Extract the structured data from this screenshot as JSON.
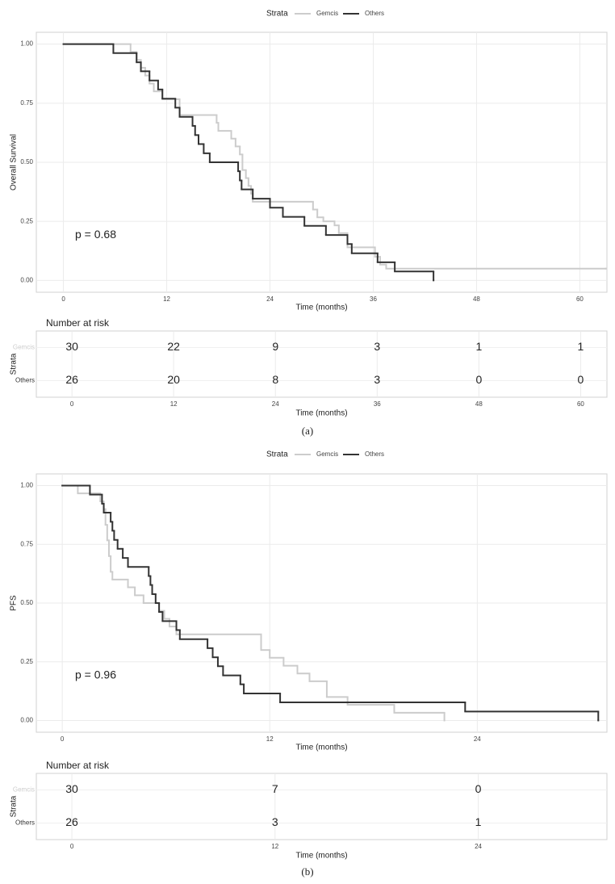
{
  "chart_data": [
    {
      "type": "step",
      "ylabel": "Overall Survival",
      "xlabel": "Time (months)",
      "legend_title": "Strata",
      "annotation": "p = 0.68",
      "xlim": [
        -3.15,
        63.15
      ],
      "xticks": [
        0,
        12,
        24,
        36,
        48,
        60
      ],
      "ylim": [
        -0.05,
        1.05
      ],
      "yticks": [
        {
          "value": 0,
          "label": "0.00"
        },
        0.25,
        {
          "value": 0.5,
          "label": "0.50"
        },
        0.75,
        {
          "value": 1,
          "label": "1.00"
        }
      ],
      "grid": true,
      "series": [
        {
          "name": "Gemcis",
          "color": "#cccccc",
          "x": [
            0,
            7.8,
            8.5,
            9,
            9.5,
            10,
            10.5,
            11.5,
            13.5,
            17.8,
            18,
            19.5,
            20,
            20.5,
            20.8,
            21.2,
            21.5,
            21.8,
            22,
            29,
            29.5,
            30.2,
            31.5,
            32,
            33,
            36.2,
            36.8,
            37.5,
            63
          ],
          "values": [
            1,
            0.967,
            0.933,
            0.9,
            0.867,
            0.833,
            0.8,
            0.767,
            0.7,
            0.667,
            0.633,
            0.6,
            0.567,
            0.533,
            0.467,
            0.433,
            0.4,
            0.367,
            0.333,
            0.3,
            0.267,
            0.25,
            0.233,
            0.2,
            0.14,
            0.1,
            0.067,
            0.05,
            0.05
          ]
        },
        {
          "name": "Others",
          "color": "#333333",
          "x": [
            0,
            5.8,
            8.5,
            9,
            10,
            11,
            11.5,
            13,
            13.5,
            15,
            15.3,
            15.7,
            16.3,
            17,
            20.3,
            20.5,
            20.7,
            22,
            24,
            25.5,
            28,
            30.5,
            33,
            33.5,
            36.5,
            38.5,
            43
          ],
          "values": [
            1,
            0.962,
            0.923,
            0.885,
            0.846,
            0.808,
            0.769,
            0.731,
            0.692,
            0.654,
            0.615,
            0.577,
            0.538,
            0.5,
            0.462,
            0.423,
            0.385,
            0.346,
            0.308,
            0.269,
            0.231,
            0.192,
            0.154,
            0.115,
            0.077,
            0.038,
            0
          ]
        }
      ]
    },
    {
      "type": "risk_table",
      "title": "Number at risk",
      "ylabel": "Strata",
      "xlabel": "Time (months)",
      "caption": "(a)",
      "xlim": [
        -4.2,
        63.1
      ],
      "xticks": [
        0,
        12,
        24,
        36,
        48,
        60
      ],
      "x": [
        0,
        12,
        24,
        36,
        48,
        60
      ],
      "series": [
        {
          "name": "Gemcis",
          "color": "#cccccc",
          "values": [
            30,
            22,
            9,
            3,
            1,
            1
          ]
        },
        {
          "name": "Others",
          "color": "#333333",
          "values": [
            26,
            20,
            8,
            3,
            0,
            0
          ]
        }
      ]
    },
    {
      "type": "step",
      "ylabel": "PFS",
      "xlabel": "Time (months)",
      "legend_title": "Strata",
      "annotation": "p = 0.96",
      "xlim": [
        -1.5,
        31.5
      ],
      "xticks": [
        0,
        12,
        24
      ],
      "ylim": [
        -0.05,
        1.05
      ],
      "yticks": [
        {
          "value": 0,
          "label": "0.00"
        },
        0.25,
        {
          "value": 0.5,
          "label": "0.50"
        },
        0.75,
        {
          "value": 1,
          "label": "1.00"
        }
      ],
      "grid": true,
      "series": [
        {
          "name": "Gemcis",
          "color": "#cccccc",
          "x": [
            0,
            0.9,
            2.2,
            2.4,
            2.5,
            2.6,
            2.7,
            2.8,
            2.9,
            3.8,
            4.2,
            4.7,
            5.6,
            5.9,
            6.2,
            6.6,
            11.5,
            12,
            12.8,
            13.6,
            14.3,
            15.3,
            16.5,
            19.2,
            22.1
          ],
          "values": [
            1,
            0.967,
            0.933,
            0.9,
            0.833,
            0.767,
            0.7,
            0.633,
            0.6,
            0.567,
            0.533,
            0.5,
            0.467,
            0.433,
            0.4,
            0.367,
            0.3,
            0.267,
            0.233,
            0.2,
            0.167,
            0.1,
            0.067,
            0.033,
            0
          ]
        },
        {
          "name": "Others",
          "color": "#333333",
          "x": [
            0,
            1.6,
            2.3,
            2.4,
            2.8,
            2.9,
            3,
            3.2,
            3.5,
            3.8,
            5,
            5.1,
            5.2,
            5.4,
            5.6,
            5.8,
            6.6,
            6.8,
            8.4,
            8.7,
            9,
            9.3,
            10.3,
            10.5,
            12.6,
            23.3,
            31
          ],
          "values": [
            1,
            0.962,
            0.923,
            0.885,
            0.846,
            0.808,
            0.769,
            0.731,
            0.692,
            0.654,
            0.615,
            0.577,
            0.538,
            0.5,
            0.462,
            0.423,
            0.385,
            0.346,
            0.308,
            0.269,
            0.231,
            0.192,
            0.154,
            0.115,
            0.077,
            0.038,
            0
          ]
        }
      ]
    },
    {
      "type": "risk_table",
      "title": "Number at risk",
      "ylabel": "Strata",
      "xlabel": "Time (months)",
      "caption": "(b)",
      "xlim": [
        -2.1,
        31.6
      ],
      "xticks": [
        0,
        12,
        24
      ],
      "x": [
        0,
        12,
        24
      ],
      "series": [
        {
          "name": "Gemcis",
          "color": "#cccccc",
          "values": [
            30,
            7,
            0
          ]
        },
        {
          "name": "Others",
          "color": "#333333",
          "values": [
            26,
            3,
            1
          ]
        }
      ]
    }
  ]
}
